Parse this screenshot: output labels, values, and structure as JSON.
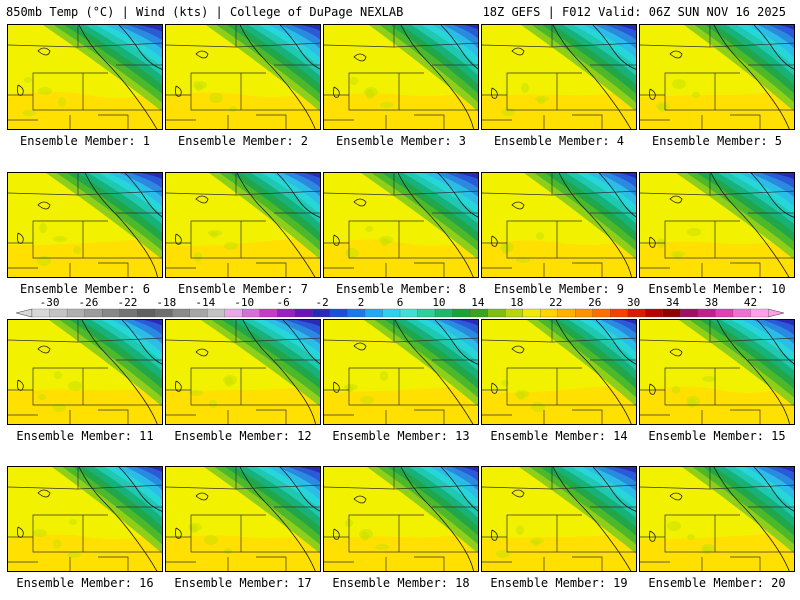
{
  "header": {
    "left": "850mb Temp (°C) | Wind (kts) | College of DuPage NEXLAB",
    "right": "18Z GEFS | F012 Valid: 06Z SUN NOV 16 2025"
  },
  "member_label_prefix": "Ensemble Member: ",
  "members": [
    {
      "label": "Ensemble Member: 1"
    },
    {
      "label": "Ensemble Member: 2"
    },
    {
      "label": "Ensemble Member: 3"
    },
    {
      "label": "Ensemble Member: 4"
    },
    {
      "label": "Ensemble Member: 5"
    },
    {
      "label": "Ensemble Member: 6"
    },
    {
      "label": "Ensemble Member: 7"
    },
    {
      "label": "Ensemble Member: 8"
    },
    {
      "label": "Ensemble Member: 9"
    },
    {
      "label": "Ensemble Member: 10"
    },
    {
      "label": "Ensemble Member: 11"
    },
    {
      "label": "Ensemble Member: 12"
    },
    {
      "label": "Ensemble Member: 13"
    },
    {
      "label": "Ensemble Member: 14"
    },
    {
      "label": "Ensemble Member: 15"
    },
    {
      "label": "Ensemble Member: 16"
    },
    {
      "label": "Ensemble Member: 17"
    },
    {
      "label": "Ensemble Member: 18"
    },
    {
      "label": "Ensemble Member: 19"
    },
    {
      "label": "Ensemble Member: 20"
    }
  ],
  "colorbar": {
    "ticks": [
      "-30",
      "-26",
      "-22",
      "-18",
      "-14",
      "-10",
      "-6",
      "-2",
      "2",
      "6",
      "10",
      "14",
      "18",
      "22",
      "26",
      "30",
      "34",
      "38",
      "42"
    ],
    "colors": [
      "#d8d8d8",
      "#c4c4c4",
      "#b0b0b0",
      "#9c9c9c",
      "#888888",
      "#747474",
      "#606060",
      "#6f6f6f",
      "#8a8a8a",
      "#a6a6a6",
      "#c3c3c3",
      "#e8a8e8",
      "#d670d6",
      "#c43bc4",
      "#9b1fc0",
      "#6a14b8",
      "#2a2ab8",
      "#1a4fd6",
      "#1e78ea",
      "#23a8f2",
      "#2fd0ee",
      "#3fe0d0",
      "#2ecf9a",
      "#1fb86a",
      "#17a33a",
      "#3ba31d",
      "#7fbe12",
      "#b8d60c",
      "#eeea08",
      "#ffd400",
      "#ffb300",
      "#ff9400",
      "#ff6e00",
      "#f24100",
      "#d81c00",
      "#b80000",
      "#900000",
      "#a01060",
      "#c0208a",
      "#e040b0",
      "#f070d0",
      "#ffa0e8"
    ]
  },
  "map_palette": {
    "warm": [
      "#ff8a00",
      "#ffa300",
      "#ffc200",
      "#ffe000",
      "#f2f200",
      "#c8e000"
    ],
    "cool": [
      "#8fcf1a",
      "#4cb82a",
      "#21a64a",
      "#16b27a",
      "#1fc8b0",
      "#27d6d8",
      "#2bbde8",
      "#2a8ae0",
      "#2a5ad8",
      "#2a2ab8"
    ]
  }
}
